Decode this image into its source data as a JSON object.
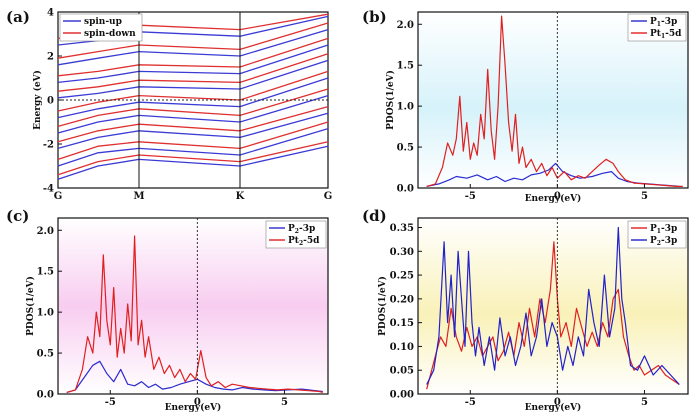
{
  "chart_data": [
    {
      "panel": "(a)",
      "type": "line",
      "title": "",
      "xlabel": "",
      "ylabel": "Energy (eV)",
      "ylim": [
        -4,
        4
      ],
      "yticks": [
        "4",
        "2",
        "0",
        "-2",
        "-4"
      ],
      "xticks": [
        "G",
        "M",
        "K",
        "G"
      ],
      "legend": [
        "spin-up",
        "spin-down"
      ],
      "legend_position": "top-left",
      "fermi_level": 0,
      "series": [
        {
          "name": "spin-up",
          "color": "#3b3bd6",
          "bands": [
            [
              -3.6,
              -3.0,
              -2.7,
              -3.0,
              -2.1
            ],
            [
              -3.0,
              -2.4,
              -2.2,
              -2.5,
              -1.3
            ],
            [
              -2.2,
              -1.7,
              -1.4,
              -1.7,
              -0.6
            ],
            [
              -1.5,
              -1.0,
              -0.7,
              -1.0,
              0.2
            ],
            [
              -0.8,
              -0.4,
              -0.1,
              -0.3,
              1.0
            ],
            [
              0.1,
              0.3,
              0.6,
              0.5,
              1.8
            ],
            [
              0.8,
              1.0,
              1.3,
              1.2,
              2.5
            ],
            [
              1.6,
              1.9,
              2.2,
              2.0,
              3.2
            ],
            [
              2.5,
              2.7,
              3.1,
              2.9,
              3.8
            ]
          ]
        },
        {
          "name": "spin-down",
          "color": "#e03030",
          "bands": [
            [
              -3.4,
              -2.8,
              -2.5,
              -2.8,
              -1.9
            ],
            [
              -2.7,
              -2.1,
              -1.9,
              -2.2,
              -1.0
            ],
            [
              -1.9,
              -1.4,
              -1.1,
              -1.4,
              -0.3
            ],
            [
              -1.2,
              -0.7,
              -0.4,
              -0.7,
              0.5
            ],
            [
              -0.5,
              -0.1,
              0.2,
              0.0,
              1.3
            ],
            [
              0.4,
              0.6,
              0.9,
              0.8,
              2.1
            ],
            [
              1.1,
              1.3,
              1.6,
              1.5,
              2.8
            ],
            [
              1.9,
              2.2,
              2.5,
              2.3,
              3.5
            ],
            [
              2.8,
              3.0,
              3.4,
              3.2,
              3.9
            ]
          ]
        }
      ]
    },
    {
      "panel": "(b)",
      "type": "line",
      "xlabel": "Energy(eV)",
      "ylabel": "PDOS(1/eV)",
      "xlim": [
        -8,
        7.5
      ],
      "ylim": [
        0,
        2.15
      ],
      "xticks": [
        "-5",
        "0",
        "5"
      ],
      "yticks": [
        "0.0",
        "0.5",
        "1.0",
        "1.5",
        "2.0"
      ],
      "legend": [
        "P1-3p",
        "Pt1-5d"
      ],
      "legend_sub": [
        "1",
        "1"
      ],
      "legend_position": "top-right",
      "background_tint": "#d6f2fa",
      "fermi_level": 0,
      "series": [
        {
          "name": "P1-3p",
          "color": "#2b2bd0",
          "x": [
            -7.5,
            -6.8,
            -6.2,
            -5.8,
            -5.2,
            -4.6,
            -4.0,
            -3.5,
            -3.0,
            -2.5,
            -2.0,
            -1.5,
            -1.0,
            -0.5,
            -0.1,
            0.3,
            0.8,
            1.3,
            2.0,
            2.6,
            3.1,
            3.5,
            4.0,
            4.6,
            5.2,
            5.8,
            6.4,
            7.0
          ],
          "y": [
            0.02,
            0.05,
            0.1,
            0.14,
            0.12,
            0.16,
            0.1,
            0.14,
            0.08,
            0.12,
            0.1,
            0.16,
            0.18,
            0.22,
            0.3,
            0.2,
            0.15,
            0.12,
            0.14,
            0.18,
            0.2,
            0.12,
            0.08,
            0.06,
            0.05,
            0.04,
            0.03,
            0.02
          ]
        },
        {
          "name": "Pt1-5d",
          "color": "#e02020",
          "x": [
            -7.5,
            -7.0,
            -6.6,
            -6.3,
            -6.0,
            -5.8,
            -5.6,
            -5.4,
            -5.2,
            -5.0,
            -4.8,
            -4.6,
            -4.4,
            -4.2,
            -4.0,
            -3.8,
            -3.6,
            -3.4,
            -3.2,
            -3.0,
            -2.8,
            -2.6,
            -2.4,
            -2.2,
            -2.0,
            -1.8,
            -1.5,
            -1.2,
            -0.9,
            -0.6,
            -0.3,
            0.0,
            0.4,
            0.8,
            1.2,
            1.6,
            2.0,
            2.4,
            2.8,
            3.2,
            3.5,
            3.9,
            4.4,
            5.0,
            5.6,
            6.2,
            6.8,
            7.2
          ],
          "y": [
            0.02,
            0.05,
            0.25,
            0.55,
            0.4,
            0.6,
            1.12,
            0.45,
            0.8,
            0.35,
            0.55,
            0.4,
            0.9,
            0.6,
            1.45,
            0.7,
            0.35,
            1.0,
            2.1,
            1.5,
            0.8,
            0.45,
            0.9,
            0.3,
            0.5,
            0.25,
            0.35,
            0.2,
            0.3,
            0.15,
            0.25,
            0.12,
            0.2,
            0.1,
            0.15,
            0.12,
            0.2,
            0.28,
            0.35,
            0.3,
            0.2,
            0.1,
            0.06,
            0.05,
            0.04,
            0.03,
            0.02,
            0.02
          ]
        }
      ]
    },
    {
      "panel": "(c)",
      "type": "line",
      "xlabel": "Energy(eV)",
      "ylabel": "PDOS(1/eV)",
      "xlim": [
        -8,
        7.5
      ],
      "ylim": [
        0,
        2.15
      ],
      "xticks": [
        "-5",
        "0",
        "5"
      ],
      "yticks": [
        "0.0",
        "0.5",
        "1.0",
        "1.5",
        "2.0"
      ],
      "legend": [
        "P2-3p",
        "Pt2-5d"
      ],
      "legend_sub": [
        "2",
        "2"
      ],
      "legend_position": "top-right",
      "background_tint": "#f8cdf0",
      "fermi_level": 0,
      "series": [
        {
          "name": "P2-3p",
          "color": "#2b2bd0",
          "x": [
            -7.5,
            -7.0,
            -6.5,
            -6.0,
            -5.6,
            -5.2,
            -4.8,
            -4.4,
            -4.0,
            -3.6,
            -3.2,
            -2.8,
            -2.4,
            -2.0,
            -1.5,
            -1.0,
            -0.5,
            0.0,
            0.5,
            1.0,
            1.5,
            2.0,
            2.6,
            3.2,
            3.8,
            4.5,
            5.2,
            6.0,
            6.8,
            7.2
          ],
          "y": [
            0.02,
            0.05,
            0.2,
            0.35,
            0.4,
            0.25,
            0.15,
            0.3,
            0.12,
            0.1,
            0.15,
            0.08,
            0.12,
            0.06,
            0.08,
            0.12,
            0.15,
            0.18,
            0.12,
            0.08,
            0.06,
            0.05,
            0.08,
            0.06,
            0.05,
            0.04,
            0.05,
            0.06,
            0.04,
            0.03
          ]
        },
        {
          "name": "Pt2-5d",
          "color": "#e02020",
          "x": [
            -7.5,
            -7.0,
            -6.6,
            -6.3,
            -6.0,
            -5.8,
            -5.6,
            -5.4,
            -5.2,
            -5.0,
            -4.8,
            -4.6,
            -4.4,
            -4.2,
            -4.0,
            -3.8,
            -3.6,
            -3.4,
            -3.2,
            -3.0,
            -2.8,
            -2.5,
            -2.2,
            -1.9,
            -1.6,
            -1.3,
            -1.0,
            -0.7,
            -0.4,
            -0.1,
            0.2,
            0.5,
            0.8,
            1.2,
            1.6,
            2.0,
            2.5,
            3.0,
            3.5,
            4.0,
            4.6,
            5.2,
            5.8,
            6.4,
            7.0,
            7.2
          ],
          "y": [
            0.02,
            0.05,
            0.3,
            0.7,
            0.5,
            1.0,
            0.7,
            1.7,
            0.9,
            0.6,
            1.3,
            0.45,
            0.8,
            0.5,
            1.1,
            0.65,
            1.93,
            0.6,
            0.9,
            0.45,
            0.7,
            0.3,
            0.45,
            0.25,
            0.35,
            0.2,
            0.3,
            0.15,
            0.25,
            0.18,
            0.53,
            0.2,
            0.1,
            0.15,
            0.08,
            0.12,
            0.1,
            0.08,
            0.07,
            0.06,
            0.05,
            0.06,
            0.05,
            0.04,
            0.03,
            0.02
          ]
        }
      ]
    },
    {
      "panel": "(d)",
      "type": "line",
      "xlabel": "Energy(eV)",
      "ylabel": "PDOS(1/eV)",
      "xlim": [
        -8,
        7.5
      ],
      "ylim": [
        0,
        0.37
      ],
      "xticks": [
        "-5",
        "0",
        "5"
      ],
      "yticks": [
        "0.00",
        "0.05",
        "0.10",
        "0.15",
        "0.20",
        "0.25",
        "0.30",
        "0.35"
      ],
      "legend": [
        "P1-3p",
        "P2-3p"
      ],
      "legend_sub": [
        "1",
        "2"
      ],
      "legend_position": "top-right",
      "background_tint": "#f9f1b8",
      "fermi_level": 0,
      "series": [
        {
          "name": "P1-3p",
          "color": "#e02020",
          "x": [
            -7.5,
            -7.0,
            -6.7,
            -6.4,
            -6.1,
            -5.8,
            -5.5,
            -5.2,
            -4.9,
            -4.6,
            -4.3,
            -4.0,
            -3.7,
            -3.4,
            -3.1,
            -2.8,
            -2.5,
            -2.2,
            -1.9,
            -1.6,
            -1.3,
            -1.0,
            -0.7,
            -0.4,
            -0.2,
            0.0,
            0.2,
            0.5,
            0.8,
            1.1,
            1.4,
            1.7,
            2.0,
            2.3,
            2.6,
            2.9,
            3.2,
            3.5,
            3.8,
            4.1,
            4.4,
            4.7,
            5.0,
            5.4,
            5.8,
            6.2,
            6.6,
            7.0
          ],
          "y": [
            0.01,
            0.08,
            0.12,
            0.1,
            0.18,
            0.12,
            0.09,
            0.14,
            0.1,
            0.12,
            0.08,
            0.1,
            0.12,
            0.07,
            0.09,
            0.13,
            0.08,
            0.15,
            0.1,
            0.18,
            0.12,
            0.2,
            0.15,
            0.22,
            0.32,
            0.2,
            0.12,
            0.15,
            0.1,
            0.18,
            0.14,
            0.1,
            0.13,
            0.1,
            0.15,
            0.12,
            0.2,
            0.22,
            0.12,
            0.08,
            0.05,
            0.06,
            0.04,
            0.05,
            0.06,
            0.04,
            0.03,
            0.02
          ]
        },
        {
          "name": "P2-3p",
          "color": "#2222c8",
          "x": [
            -7.5,
            -7.1,
            -6.8,
            -6.5,
            -6.3,
            -6.1,
            -5.9,
            -5.7,
            -5.5,
            -5.3,
            -5.1,
            -4.9,
            -4.7,
            -4.5,
            -4.2,
            -3.9,
            -3.6,
            -3.3,
            -3.0,
            -2.7,
            -2.4,
            -2.1,
            -1.8,
            -1.5,
            -1.2,
            -0.9,
            -0.6,
            -0.3,
            0.0,
            0.3,
            0.6,
            0.9,
            1.2,
            1.5,
            1.8,
            2.1,
            2.4,
            2.7,
            3.0,
            3.3,
            3.5,
            3.7,
            3.9,
            4.2,
            4.6,
            5.0,
            5.5,
            6.0,
            6.5,
            7.0
          ],
          "y": [
            0.02,
            0.05,
            0.12,
            0.32,
            0.15,
            0.25,
            0.12,
            0.3,
            0.2,
            0.1,
            0.3,
            0.15,
            0.08,
            0.14,
            0.06,
            0.12,
            0.05,
            0.16,
            0.08,
            0.12,
            0.06,
            0.1,
            0.17,
            0.08,
            0.12,
            0.2,
            0.1,
            0.15,
            0.12,
            0.05,
            0.1,
            0.06,
            0.12,
            0.08,
            0.22,
            0.15,
            0.1,
            0.25,
            0.12,
            0.18,
            0.35,
            0.2,
            0.15,
            0.06,
            0.05,
            0.08,
            0.04,
            0.06,
            0.04,
            0.02
          ]
        }
      ]
    }
  ]
}
